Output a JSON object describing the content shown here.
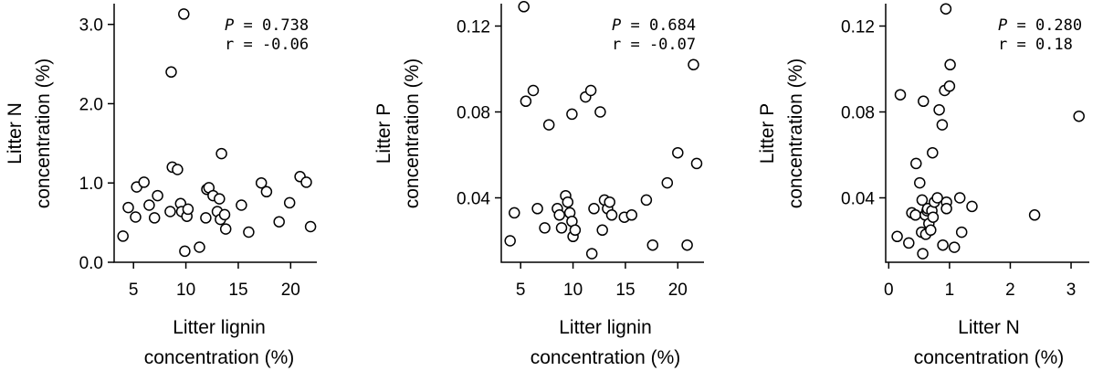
{
  "chart_data": [
    {
      "type": "scatter",
      "xlabel": [
        "Litter lignin",
        "concentration (%)"
      ],
      "ylabel": [
        "Litter N",
        "concentration (%)"
      ],
      "xlim": [
        3.5,
        22.5
      ],
      "ylim": [
        0,
        3.25
      ],
      "xticks": [
        5,
        10,
        15,
        20
      ],
      "yticks": [
        0.0,
        1.0,
        2.0,
        3.0
      ],
      "xtick_labels": [
        "5",
        "10",
        "15",
        "20"
      ],
      "ytick_labels": [
        "0.0",
        "1.0",
        "2.0",
        "3.0"
      ],
      "annotation": {
        "p_symbol": "P",
        "p_value": " = 0.738",
        "r_line": "r = -0.06"
      },
      "points": [
        [
          4.0,
          0.33
        ],
        [
          4.5,
          0.69
        ],
        [
          5.2,
          0.57
        ],
        [
          5.3,
          0.95
        ],
        [
          6.0,
          1.01
        ],
        [
          6.5,
          0.72
        ],
        [
          7.0,
          0.56
        ],
        [
          7.3,
          0.84
        ],
        [
          8.5,
          0.64
        ],
        [
          8.6,
          2.4
        ],
        [
          8.7,
          1.2
        ],
        [
          9.2,
          1.17
        ],
        [
          9.5,
          0.74
        ],
        [
          9.6,
          0.64
        ],
        [
          9.8,
          3.13
        ],
        [
          9.9,
          0.14
        ],
        [
          10.1,
          0.58
        ],
        [
          10.2,
          0.67
        ],
        [
          11.3,
          0.19
        ],
        [
          11.9,
          0.56
        ],
        [
          12.0,
          0.92
        ],
        [
          12.2,
          0.94
        ],
        [
          12.6,
          0.84
        ],
        [
          13.0,
          0.64
        ],
        [
          13.2,
          0.8
        ],
        [
          13.3,
          0.54
        ],
        [
          13.4,
          1.37
        ],
        [
          13.7,
          0.6
        ],
        [
          13.8,
          0.42
        ],
        [
          15.3,
          0.72
        ],
        [
          16.0,
          0.38
        ],
        [
          17.2,
          1.0
        ],
        [
          17.7,
          0.89
        ],
        [
          18.9,
          0.51
        ],
        [
          19.9,
          0.75
        ],
        [
          20.9,
          1.08
        ],
        [
          21.5,
          1.01
        ],
        [
          21.9,
          0.45
        ]
      ]
    },
    {
      "type": "scatter",
      "xlabel": [
        "Litter lignin",
        "concentration (%)"
      ],
      "ylabel": [
        "Litter P",
        "concentration (%)"
      ],
      "xlim": [
        3.5,
        22.5
      ],
      "ylim": [
        0.01,
        0.13
      ],
      "xticks": [
        5,
        10,
        15,
        20
      ],
      "yticks": [
        0.04,
        0.08,
        0.12
      ],
      "xtick_labels": [
        "5",
        "10",
        "15",
        "20"
      ],
      "ytick_labels": [
        "0.04",
        "0.08",
        "0.12"
      ],
      "annotation": {
        "p_symbol": "P",
        "p_value": " = 0.684",
        "r_line": "r = -0.07"
      },
      "points": [
        [
          4.0,
          0.02
        ],
        [
          4.4,
          0.033
        ],
        [
          5.3,
          0.129
        ],
        [
          5.5,
          0.085
        ],
        [
          6.2,
          0.09
        ],
        [
          6.6,
          0.035
        ],
        [
          7.3,
          0.026
        ],
        [
          7.7,
          0.074
        ],
        [
          8.5,
          0.035
        ],
        [
          8.7,
          0.032
        ],
        [
          8.9,
          0.026
        ],
        [
          9.3,
          0.041
        ],
        [
          9.5,
          0.038
        ],
        [
          9.7,
          0.033
        ],
        [
          9.9,
          0.029
        ],
        [
          9.9,
          0.079
        ],
        [
          10.0,
          0.022
        ],
        [
          10.2,
          0.025
        ],
        [
          11.2,
          0.087
        ],
        [
          11.7,
          0.09
        ],
        [
          11.8,
          0.014
        ],
        [
          12.0,
          0.035
        ],
        [
          12.6,
          0.08
        ],
        [
          12.8,
          0.025
        ],
        [
          13.0,
          0.039
        ],
        [
          13.3,
          0.035
        ],
        [
          13.5,
          0.038
        ],
        [
          13.7,
          0.032
        ],
        [
          14.9,
          0.031
        ],
        [
          15.6,
          0.032
        ],
        [
          17.0,
          0.039
        ],
        [
          17.6,
          0.018
        ],
        [
          19.0,
          0.047
        ],
        [
          20.0,
          0.061
        ],
        [
          20.9,
          0.018
        ],
        [
          21.5,
          0.102
        ],
        [
          21.8,
          0.056
        ]
      ]
    },
    {
      "type": "scatter",
      "xlabel": [
        "Litter N",
        "concentration (%)"
      ],
      "ylabel": [
        "Litter P",
        "concentration (%)"
      ],
      "xlim": [
        -0.05,
        3.3
      ],
      "ylim": [
        0.01,
        0.13
      ],
      "xticks": [
        0,
        1,
        2,
        3
      ],
      "yticks": [
        0.04,
        0.08,
        0.12
      ],
      "xtick_labels": [
        "0",
        "1",
        "2",
        "3"
      ],
      "ytick_labels": [
        "0.04",
        "0.08",
        "0.12"
      ],
      "annotation": {
        "p_symbol": "P",
        "p_value": " = 0.280",
        "r_line": "r = 0.18"
      },
      "points": [
        [
          0.14,
          0.022
        ],
        [
          0.19,
          0.088
        ],
        [
          0.33,
          0.019
        ],
        [
          0.38,
          0.033
        ],
        [
          0.44,
          0.032
        ],
        [
          0.45,
          0.056
        ],
        [
          0.51,
          0.047
        ],
        [
          0.54,
          0.024
        ],
        [
          0.55,
          0.039
        ],
        [
          0.56,
          0.014
        ],
        [
          0.57,
          0.085
        ],
        [
          0.6,
          0.032
        ],
        [
          0.61,
          0.023
        ],
        [
          0.63,
          0.034
        ],
        [
          0.64,
          0.035
        ],
        [
          0.66,
          0.028
        ],
        [
          0.69,
          0.025
        ],
        [
          0.71,
          0.034
        ],
        [
          0.72,
          0.061
        ],
        [
          0.73,
          0.031
        ],
        [
          0.75,
          0.038
        ],
        [
          0.8,
          0.04
        ],
        [
          0.83,
          0.081
        ],
        [
          0.88,
          0.074
        ],
        [
          0.89,
          0.018
        ],
        [
          0.92,
          0.09
        ],
        [
          0.94,
          0.128
        ],
        [
          0.95,
          0.038
        ],
        [
          0.95,
          0.035
        ],
        [
          1.0,
          0.092
        ],
        [
          1.01,
          0.102
        ],
        [
          1.08,
          0.017
        ],
        [
          1.17,
          0.04
        ],
        [
          1.2,
          0.024
        ],
        [
          1.37,
          0.036
        ],
        [
          2.4,
          0.032
        ],
        [
          3.13,
          0.078
        ]
      ]
    }
  ]
}
